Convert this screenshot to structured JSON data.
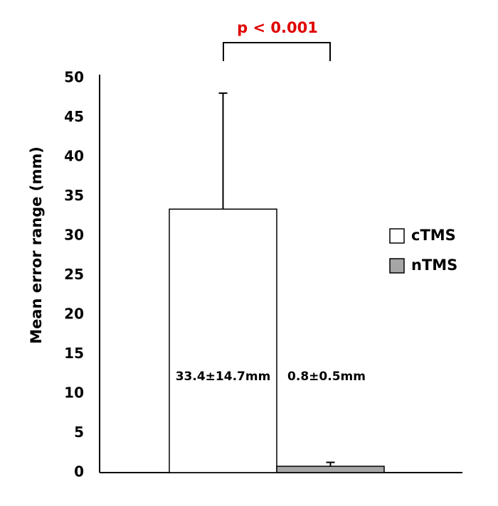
{
  "chart_data": {
    "type": "bar",
    "y_label": "Mean error range (mm)",
    "annotation": "p < 0.001",
    "series": [
      {
        "name": "cTMS",
        "color": "#ffffff",
        "values": [
          33.4
        ],
        "errors": [
          14.7
        ],
        "value_labels": [
          "33.4±14.7mm"
        ]
      },
      {
        "name": "nTMS",
        "color": "#a6a6a6",
        "values": [
          0.8
        ],
        "errors": [
          0.5
        ],
        "value_labels": [
          "0.8±0.5mm"
        ]
      }
    ],
    "ylim": [
      0,
      50
    ],
    "yticks": [
      0,
      5,
      10,
      15,
      20,
      25,
      30,
      35,
      40,
      45,
      50
    ],
    "legend": "right",
    "grid": false
  }
}
